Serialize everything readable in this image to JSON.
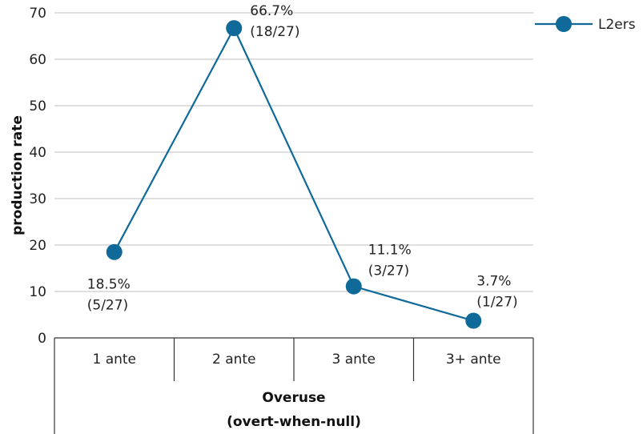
{
  "chart_data": {
    "type": "line",
    "categories": [
      "1 ante",
      "2 ante",
      "3 ante",
      "3+ ante"
    ],
    "group_label_lines": [
      "Overuse",
      "(overt-when-null)"
    ],
    "ylabel": "production rate",
    "ylim": [
      0,
      70
    ],
    "yticks": [
      0,
      10,
      20,
      30,
      40,
      50,
      60,
      70
    ],
    "grid": true,
    "legend_position": "top-right",
    "series": [
      {
        "name": "L2ers",
        "color": "#0f6a99",
        "values": [
          18.5,
          66.7,
          11.1,
          3.7
        ],
        "labels": [
          [
            "18.5%",
            "(5/27)"
          ],
          [
            "66.7%",
            "(18/27)"
          ],
          [
            "11.1%",
            "(3/27)"
          ],
          [
            "3.7%",
            "(1/27)"
          ]
        ]
      }
    ]
  }
}
